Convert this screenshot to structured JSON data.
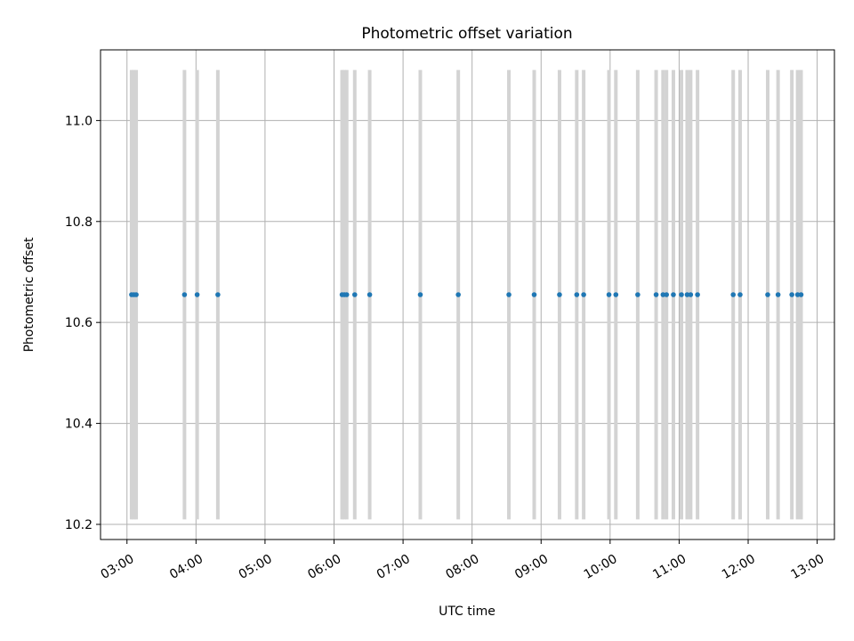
{
  "chart_data": {
    "type": "scatter",
    "title": "Photometric offset variation",
    "xlabel": "UTC time",
    "ylabel": "Photometric offset",
    "x_unit": "time of day (UTC, HH:MM)",
    "xlim": [
      "02:37",
      "13:15"
    ],
    "ylim": [
      10.17,
      11.14
    ],
    "x_ticks": [
      "03:00",
      "04:00",
      "05:00",
      "06:00",
      "07:00",
      "08:00",
      "09:00",
      "10:00",
      "11:00",
      "12:00",
      "13:00"
    ],
    "y_ticks": [
      "10.2",
      "10.4",
      "10.6",
      "10.8",
      "11.0"
    ],
    "grid": true,
    "legend": "none",
    "error_bar_range": [
      10.21,
      11.1
    ],
    "colors": {
      "points": "#1f77b4",
      "error_bars": "#d3d3d3",
      "grid": "#b0b0b0",
      "axes": "#000000"
    },
    "series": [
      {
        "y": 10.655,
        "x": [
          "03:04",
          "03:06",
          "03:08",
          "03:50",
          "04:01",
          "04:19",
          "06:07",
          "06:09",
          "06:11",
          "06:18",
          "06:31",
          "07:15",
          "07:48",
          "08:32",
          "08:54",
          "09:16",
          "09:31",
          "09:37",
          "09:59",
          "10:05",
          "10:24",
          "10:40",
          "10:46",
          "10:49",
          "10:55",
          "11:02",
          "11:07",
          "11:10",
          "11:16",
          "11:47",
          "11:53",
          "12:17",
          "12:26",
          "12:38",
          "12:43",
          "12:46"
        ]
      }
    ]
  }
}
